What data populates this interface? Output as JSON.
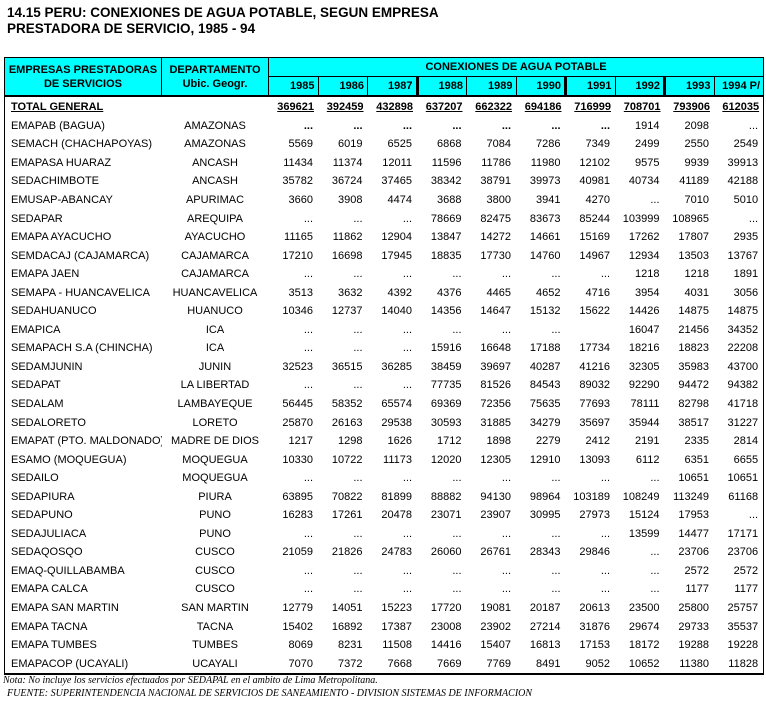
{
  "title": {
    "line1": "14.15  PERU: CONEXIONES DE AGUA POTABLE, SEGUN EMPRESA",
    "line2": "PRESTADORA DE SERVICIO, 1985 - 94"
  },
  "colors": {
    "header_bg": "#00ffff",
    "border": "#000000",
    "text": "#000000"
  },
  "table": {
    "header": {
      "col_empresas_line1": "EMPRESAS PRESTADORAS",
      "col_empresas_line2": "DE SERVICIOS",
      "col_departamento_line1": "DEPARTAMENTO",
      "col_departamento_line2": "Ubic. Geogr.",
      "group_label": "CONEXIONES DE AGUA POTABLE",
      "years": [
        "1985",
        "1986",
        "1987",
        "1988",
        "1989",
        "1990",
        "1991",
        "1992",
        "1993",
        "1994 P/"
      ],
      "thick_separator_before_years": [
        "1988",
        "1991",
        "1993"
      ]
    },
    "total": {
      "label": "TOTAL GENERAL",
      "values": [
        "369621",
        "392459",
        "432898",
        "637207",
        "662322",
        "694186",
        "716999",
        "708701",
        "793906",
        "612035"
      ]
    },
    "rows": [
      {
        "empresa": "EMAPAB (BAGUA)",
        "departamento": "AMAZONAS",
        "values": [
          "...",
          "...",
          "...",
          "...",
          "...",
          "...",
          "...",
          "1914",
          "2098",
          "..."
        ],
        "bold_cols": [
          0,
          1,
          2,
          3,
          4,
          5,
          6
        ]
      },
      {
        "empresa": "SEMACH (CHACHAPOYAS)",
        "departamento": "AMAZONAS",
        "values": [
          "5569",
          "6019",
          "6525",
          "6868",
          "7084",
          "7286",
          "7349",
          "2499",
          "2550",
          "2549"
        ]
      },
      {
        "empresa": "EMAPASA HUARAZ",
        "departamento": "ANCASH",
        "values": [
          "11434",
          "11374",
          "12011",
          "11596",
          "11786",
          "11980",
          "12102",
          "9575",
          "9939",
          "39913"
        ]
      },
      {
        "empresa": "SEDACHIMBOTE",
        "departamento": "ANCASH",
        "values": [
          "35782",
          "36724",
          "37465",
          "38342",
          "38791",
          "39973",
          "40981",
          "40734",
          "41189",
          "42188"
        ]
      },
      {
        "empresa": "EMUSAP-ABANCAY",
        "departamento": "APURIMAC",
        "values": [
          "3660",
          "3908",
          "4474",
          "3688",
          "3800",
          "3941",
          "4270",
          "...",
          "7010",
          "5010"
        ]
      },
      {
        "empresa": "SEDAPAR",
        "departamento": "AREQUIPA",
        "values": [
          "...",
          "...",
          "...",
          "78669",
          "82475",
          "83673",
          "85244",
          "103999",
          "108965",
          "..."
        ]
      },
      {
        "empresa": "EMAPA AYACUCHO",
        "departamento": "AYACUCHO",
        "values": [
          "11165",
          "11862",
          "12904",
          "13847",
          "14272",
          "14661",
          "15169",
          "17262",
          "17807",
          "2935"
        ]
      },
      {
        "empresa": "SEMDACAJ (CAJAMARCA)",
        "departamento": "CAJAMARCA",
        "values": [
          "17210",
          "16698",
          "17945",
          "18835",
          "17730",
          "14760",
          "14967",
          "12934",
          "13503",
          "13767"
        ]
      },
      {
        "empresa": "EMAPA JAEN",
        "departamento": "CAJAMARCA",
        "values": [
          "...",
          "...",
          "...",
          "...",
          "...",
          "...",
          "...",
          "1218",
          "1218",
          "1891"
        ]
      },
      {
        "empresa": "SEMAPA - HUANCAVELICA",
        "departamento": "HUANCAVELICA",
        "values": [
          "3513",
          "3632",
          "4392",
          "4376",
          "4465",
          "4652",
          "4716",
          "3954",
          "4031",
          "3056"
        ]
      },
      {
        "empresa": "SEDAHUANUCO",
        "departamento": "HUANUCO",
        "values": [
          "10346",
          "12737",
          "14040",
          "14356",
          "14647",
          "15132",
          "15622",
          "14426",
          "14875",
          "14875"
        ]
      },
      {
        "empresa": "EMAPICA",
        "departamento": "ICA",
        "values": [
          "...",
          "...",
          "...",
          "...",
          "...",
          "...",
          "",
          "16047",
          "21456",
          "34352"
        ]
      },
      {
        "empresa": "SEMAPACH S.A (CHINCHA)",
        "departamento": "ICA",
        "values": [
          "...",
          "...",
          "...",
          "15916",
          "16648",
          "17188",
          "17734",
          "18216",
          "18823",
          "22208"
        ]
      },
      {
        "empresa": "SEDAMJUNIN",
        "departamento": "JUNIN",
        "values": [
          "32523",
          "36515",
          "36285",
          "38459",
          "39697",
          "40287",
          "41216",
          "32305",
          "35983",
          "43700"
        ]
      },
      {
        "empresa": "SEDAPAT",
        "departamento": "LA LIBERTAD",
        "values": [
          "...",
          "...",
          "...",
          "77735",
          "81526",
          "84543",
          "89032",
          "92290",
          "94472",
          "94382"
        ]
      },
      {
        "empresa": "SEDALAM",
        "departamento": "LAMBAYEQUE",
        "values": [
          "56445",
          "58352",
          "65574",
          "69369",
          "72356",
          "75635",
          "77693",
          "78111",
          "82798",
          "41718"
        ]
      },
      {
        "empresa": "SEDALORETO",
        "departamento": "LORETO",
        "values": [
          "25870",
          "26163",
          "29538",
          "30593",
          "31885",
          "34279",
          "35697",
          "35944",
          "38517",
          "31227"
        ]
      },
      {
        "empresa": "EMAPAT (PTO. MALDONADO)",
        "departamento": "MADRE DE DIOS",
        "values": [
          "1217",
          "1298",
          "1626",
          "1712",
          "1898",
          "2279",
          "2412",
          "2191",
          "2335",
          "2814"
        ]
      },
      {
        "empresa": "ESAMO (MOQUEGUA)",
        "departamento": "MOQUEGUA",
        "values": [
          "10330",
          "10722",
          "11173",
          "12020",
          "12305",
          "12910",
          "13093",
          "6112",
          "6351",
          "6655"
        ]
      },
      {
        "empresa": "SEDAILO",
        "departamento": "MOQUEGUA",
        "values": [
          "...",
          "...",
          "...",
          "...",
          "...",
          "...",
          "...",
          "...",
          "10651",
          "10651"
        ]
      },
      {
        "empresa": "SEDAPIURA",
        "departamento": "PIURA",
        "values": [
          "63895",
          "70822",
          "81899",
          "88882",
          "94130",
          "98964",
          "103189",
          "108249",
          "113249",
          "61168"
        ]
      },
      {
        "empresa": "SEDAPUNO",
        "departamento": "PUNO",
        "values": [
          "16283",
          "17261",
          "20478",
          "23071",
          "23907",
          "30995",
          "27973",
          "15124",
          "17953",
          "..."
        ]
      },
      {
        "empresa": "SEDAJULIACA",
        "departamento": "PUNO",
        "values": [
          "...",
          "...",
          "...",
          "...",
          "...",
          "...",
          "...",
          "13599",
          "14477",
          "17171"
        ]
      },
      {
        "empresa": "SEDAQOSQO",
        "departamento": "CUSCO",
        "values": [
          "21059",
          "21826",
          "24783",
          "26060",
          "26761",
          "28343",
          "29846",
          "...",
          "23706",
          "23706"
        ]
      },
      {
        "empresa": "EMAQ-QUILLABAMBA",
        "departamento": "CUSCO",
        "values": [
          "...",
          "...",
          "...",
          "...",
          "...",
          "...",
          "...",
          "...",
          "2572",
          "2572"
        ]
      },
      {
        "empresa": "EMAPA CALCA",
        "departamento": "CUSCO",
        "values": [
          "...",
          "...",
          "...",
          "...",
          "...",
          "...",
          "...",
          "...",
          "1177",
          "1177"
        ]
      },
      {
        "empresa": "EMAPA SAN MARTIN",
        "departamento": "SAN MARTIN",
        "values": [
          "12779",
          "14051",
          "15223",
          "17720",
          "19081",
          "20187",
          "20613",
          "23500",
          "25800",
          "25757"
        ]
      },
      {
        "empresa": "EMAPA TACNA",
        "departamento": "TACNA",
        "values": [
          "15402",
          "16892",
          "17387",
          "23008",
          "23902",
          "27214",
          "31876",
          "29674",
          "29733",
          "35537"
        ]
      },
      {
        "empresa": "EMAPA TUMBES",
        "departamento": "TUMBES",
        "values": [
          "8069",
          "8231",
          "11508",
          "14416",
          "15407",
          "16813",
          "17153",
          "18172",
          "19288",
          "19228"
        ]
      },
      {
        "empresa": "EMAPACOP (UCAYALI)",
        "departamento": "UCAYALI",
        "values": [
          "7070",
          "7372",
          "7668",
          "7669",
          "7769",
          "8491",
          "9052",
          "10652",
          "11380",
          "11828"
        ]
      }
    ]
  },
  "notes": {
    "nota": "Nota: No incluye los servicios efectuados por SEDAPAL en el ambito de Lima Metropolitana.",
    "fuente": "FUENTE: SUPERINTENDENCIA NACIONAL DE SERVICIOS DE SANEAMIENTO  -  DIVISION SISTEMAS DE INFORMACION"
  }
}
